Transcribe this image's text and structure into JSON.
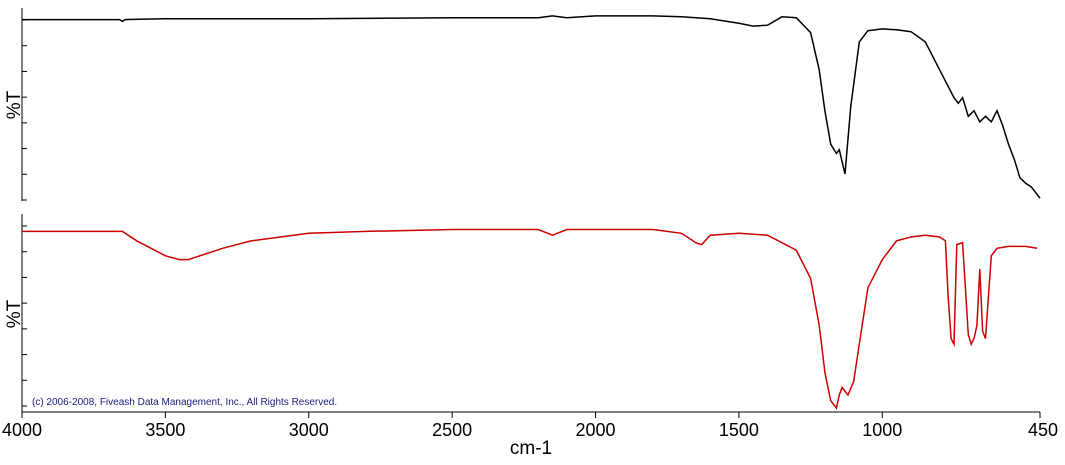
{
  "copyright": "(c) 2006-2008, Fiveash Data Management, Inc., All Rights Reserved.",
  "chart_data": {
    "type": "line",
    "xlabel": "cm-1",
    "x_ticks": [
      "4000",
      "3500",
      "3000",
      "2500",
      "2000",
      "1500",
      "1000",
      "450"
    ],
    "xlim": [
      4000,
      450
    ],
    "x_reversed": true,
    "grid": false,
    "panels": [
      {
        "ylabel": "%T",
        "ylim": [
          0,
          100
        ],
        "color": "#000000",
        "x": [
          4000,
          3660,
          3650,
          3640,
          3500,
          3000,
          2500,
          2200,
          2150,
          2100,
          2000,
          1800,
          1700,
          1600,
          1500,
          1450,
          1400,
          1350,
          1300,
          1250,
          1220,
          1200,
          1180,
          1160,
          1150,
          1130,
          1110,
          1080,
          1050,
          1000,
          950,
          900,
          850,
          800,
          750,
          735,
          720,
          700,
          680,
          660,
          640,
          620,
          600,
          580,
          560,
          540,
          520,
          500,
          480,
          460,
          450
        ],
        "y": [
          97,
          97,
          96,
          97,
          97.5,
          97.5,
          98,
          98,
          99,
          98,
          99,
          99,
          98.5,
          97.5,
          95,
          93.5,
          94,
          98.5,
          98,
          90,
          70,
          48,
          30,
          25,
          27,
          14,
          50,
          85,
          91,
          92,
          91.5,
          90.5,
          85,
          70,
          55,
          52,
          55,
          45,
          48,
          42,
          45,
          42,
          48,
          40,
          30,
          22,
          12,
          9,
          7,
          3,
          1
        ],
        "y_ticks": 8
      },
      {
        "ylabel": "%T",
        "ylim": [
          0,
          100
        ],
        "color": "#cc0000",
        "x": [
          4000,
          3650,
          3600,
          3500,
          3450,
          3420,
          3400,
          3300,
          3200,
          3000,
          2800,
          2500,
          2200,
          2150,
          2100,
          2000,
          1800,
          1700,
          1650,
          1630,
          1600,
          1500,
          1400,
          1300,
          1250,
          1220,
          1200,
          1180,
          1160,
          1150,
          1140,
          1120,
          1100,
          1080,
          1050,
          1000,
          950,
          900,
          850,
          800,
          780,
          770,
          760,
          750,
          740,
          720,
          700,
          690,
          680,
          670,
          660,
          650,
          640,
          620,
          600,
          560,
          500,
          460
        ],
        "y": [
          95,
          95,
          90,
          82,
          80,
          80,
          81,
          86,
          90,
          94,
          95,
          96,
          96,
          93,
          96,
          96,
          96,
          94,
          89,
          88,
          93,
          94,
          93,
          85,
          70,
          45,
          20,
          5,
          1,
          8,
          12,
          8,
          15,
          35,
          65,
          80,
          90,
          92,
          93,
          92,
          90,
          60,
          38,
          35,
          88,
          89,
          40,
          35,
          38,
          45,
          75,
          42,
          38,
          82,
          86,
          87,
          87,
          86
        ],
        "y_ticks": 8
      }
    ]
  }
}
